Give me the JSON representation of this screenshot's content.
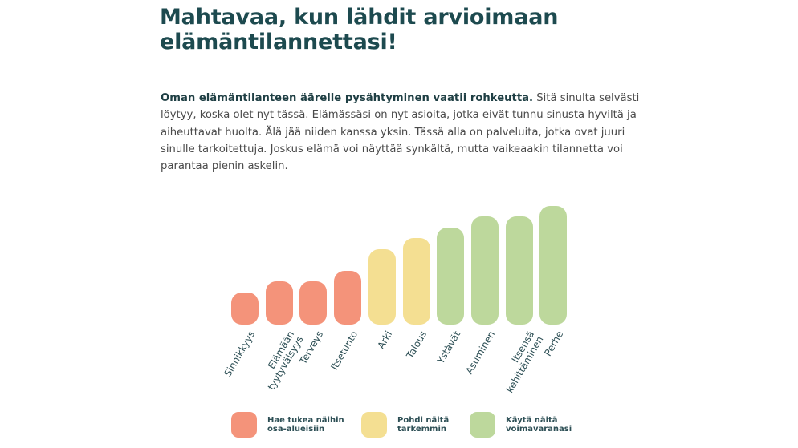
{
  "page": {
    "title": "Mahtavaa, kun lähdit arvioimaan elämäntilannettasi!",
    "intro_bold": "Oman elämäntilanteen äärelle pysähtyminen vaatii rohkeutta.",
    "intro_text": " Sitä sinulta selvästi löytyy, koska olet nyt tässä. Elämässäsi on nyt asioita, jotka eivät tunnu sinusta hyviltä ja aiheuttavat huolta. Älä jää niiden kanssa yksin. Tässä alla on palveluita, jotka ovat juuri sinulle tarkoitettuja. Joskus elämä voi näyttää synkältä, mutta vaikeaakin tilannetta voi parantaa pienin askelin."
  },
  "colors": {
    "red": "#f4937a",
    "yellow": "#f4df92",
    "green": "#bdd89c",
    "title": "#1d4a4f"
  },
  "chart_data": {
    "type": "bar",
    "categories": [
      "Sinnikkyys",
      "Elämään\ntyytyväisyys",
      "Terveys",
      "Itsetunto",
      "Arki",
      "Talous",
      "Ystävät",
      "Asuminen",
      "Itsensä\nkehittäminen",
      "Perhe"
    ],
    "values": [
      3,
      4,
      4,
      5,
      7,
      8,
      9,
      10,
      10,
      11
    ],
    "groups": [
      "red",
      "red",
      "red",
      "red",
      "yellow",
      "yellow",
      "green",
      "green",
      "green",
      "green"
    ],
    "ylim": [
      0,
      11
    ],
    "grid": false,
    "legend_placement": "bottom",
    "legend": [
      {
        "group": "red",
        "label": "Hae tukea näihin\nosa-alueisiin"
      },
      {
        "group": "yellow",
        "label": "Pohdi näitä\ntarkemmin"
      },
      {
        "group": "green",
        "label": "Käytä näitä\nvoimavaranasi"
      }
    ]
  }
}
